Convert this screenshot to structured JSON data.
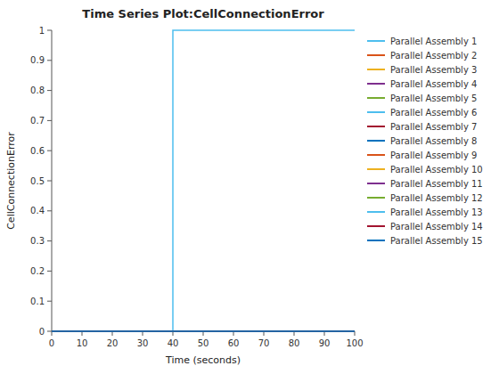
{
  "chart_data": {
    "type": "step",
    "title": "Time Series Plot:CellConnectionError",
    "x_label": "Time (seconds)",
    "y_label": "CellConnectionError",
    "xlim": [
      0,
      100
    ],
    "ylim": [
      0,
      1
    ],
    "xticks": [
      0,
      10,
      20,
      30,
      40,
      50,
      60,
      70,
      80,
      90,
      100
    ],
    "yticks": [
      0,
      0.1,
      0.2,
      0.3,
      0.4,
      0.5,
      0.6,
      0.7,
      0.8,
      0.9,
      1
    ],
    "grid": false,
    "legend": "right",
    "series": [
      {
        "name": "Parallel Assembly 1",
        "color": "#4DBEEE",
        "x": [
          0,
          40,
          100
        ],
        "values": [
          0,
          1,
          1
        ]
      },
      {
        "name": "Parallel Assembly 2",
        "color": "#D95319",
        "x": [
          0,
          100
        ],
        "values": [
          0,
          0
        ]
      },
      {
        "name": "Parallel Assembly 3",
        "color": "#EDB120",
        "x": [
          0,
          100
        ],
        "values": [
          0,
          0
        ]
      },
      {
        "name": "Parallel Assembly 4",
        "color": "#7E2F8E",
        "x": [
          0,
          100
        ],
        "values": [
          0,
          0
        ]
      },
      {
        "name": "Parallel Assembly 5",
        "color": "#77AC30",
        "x": [
          0,
          100
        ],
        "values": [
          0,
          0
        ]
      },
      {
        "name": "Parallel Assembly 6",
        "color": "#4DBEEE",
        "x": [
          0,
          100
        ],
        "values": [
          0,
          0
        ]
      },
      {
        "name": "Parallel Assembly 7",
        "color": "#A2142F",
        "x": [
          0,
          100
        ],
        "values": [
          0,
          0
        ]
      },
      {
        "name": "Parallel Assembly 8",
        "color": "#0072BD",
        "x": [
          0,
          100
        ],
        "values": [
          0,
          0
        ]
      },
      {
        "name": "Parallel Assembly 9",
        "color": "#D95319",
        "x": [
          0,
          100
        ],
        "values": [
          0,
          0
        ]
      },
      {
        "name": "Parallel Assembly 10",
        "color": "#EDB120",
        "x": [
          0,
          100
        ],
        "values": [
          0,
          0
        ]
      },
      {
        "name": "Parallel Assembly 11",
        "color": "#7E2F8E",
        "x": [
          0,
          100
        ],
        "values": [
          0,
          0
        ]
      },
      {
        "name": "Parallel Assembly 12",
        "color": "#77AC30",
        "x": [
          0,
          100
        ],
        "values": [
          0,
          0
        ]
      },
      {
        "name": "Parallel Assembly 13",
        "color": "#4DBEEE",
        "x": [
          0,
          100
        ],
        "values": [
          0,
          0
        ]
      },
      {
        "name": "Parallel Assembly 14",
        "color": "#A2142F",
        "x": [
          0,
          100
        ],
        "values": [
          0,
          0
        ]
      },
      {
        "name": "Parallel Assembly 15",
        "color": "#0072BD",
        "x": [
          0,
          100
        ],
        "values": [
          0,
          0
        ]
      }
    ]
  }
}
